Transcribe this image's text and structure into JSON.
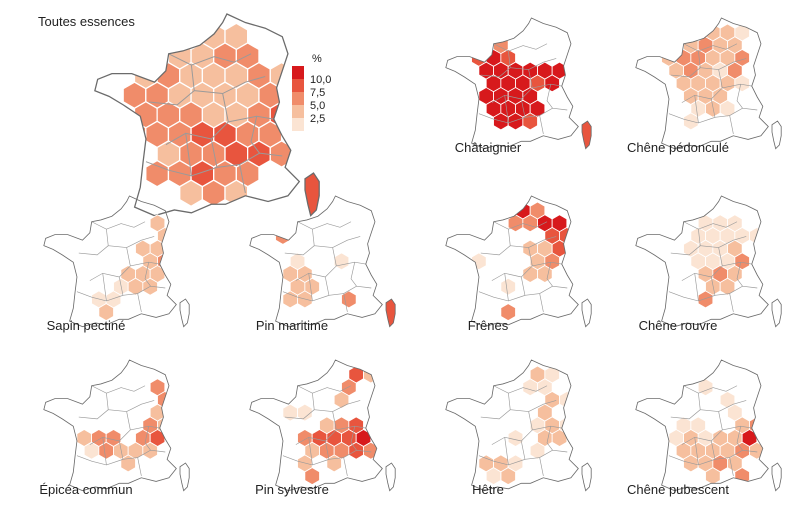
{
  "main_title": "Toutes essences",
  "legend": {
    "unit": "%",
    "ticks": [
      "10,0",
      "7,5",
      "5,0",
      "2,5"
    ],
    "colors": [
      "#d7191c",
      "#e8553e",
      "#f08c6a",
      "#f6bf9e",
      "#fbe4d3"
    ]
  },
  "colors": {
    "outline": "#6b6b6b",
    "regions": "#9a9a9a",
    "hex_border": "#ffffff"
  },
  "maps": [
    {
      "name": "Toutes essences",
      "label": "",
      "cells": [
        [
          3,
          1,
          2
        ],
        [
          4,
          1,
          2
        ],
        [
          5,
          1,
          2
        ],
        [
          2,
          2,
          3
        ],
        [
          3,
          2,
          2
        ],
        [
          4,
          2,
          2
        ],
        [
          5,
          2,
          3
        ],
        [
          6,
          2,
          3
        ],
        [
          1,
          3,
          2
        ],
        [
          2,
          3,
          3
        ],
        [
          3,
          3,
          2
        ],
        [
          4,
          3,
          2
        ],
        [
          5,
          3,
          2
        ],
        [
          6,
          3,
          3
        ],
        [
          7,
          3,
          2
        ],
        [
          1,
          4,
          3
        ],
        [
          2,
          4,
          3
        ],
        [
          3,
          4,
          2
        ],
        [
          4,
          4,
          2
        ],
        [
          5,
          4,
          2
        ],
        [
          6,
          4,
          2
        ],
        [
          7,
          4,
          3
        ],
        [
          1,
          5,
          3
        ],
        [
          2,
          5,
          3
        ],
        [
          3,
          5,
          3
        ],
        [
          4,
          5,
          2
        ],
        [
          5,
          5,
          2
        ],
        [
          6,
          5,
          3
        ],
        [
          7,
          5,
          4
        ],
        [
          1,
          6,
          3
        ],
        [
          2,
          6,
          3
        ],
        [
          3,
          6,
          3
        ],
        [
          4,
          6,
          4
        ],
        [
          5,
          6,
          4
        ],
        [
          6,
          6,
          3
        ],
        [
          7,
          6,
          3
        ],
        [
          2,
          7,
          2
        ],
        [
          3,
          7,
          3
        ],
        [
          4,
          7,
          3
        ],
        [
          5,
          7,
          4
        ],
        [
          6,
          7,
          4
        ],
        [
          7,
          7,
          3
        ],
        [
          2,
          8,
          3
        ],
        [
          3,
          8,
          3
        ],
        [
          4,
          8,
          4
        ],
        [
          5,
          8,
          3
        ],
        [
          6,
          8,
          3
        ],
        [
          3,
          9,
          2
        ],
        [
          4,
          9,
          3
        ],
        [
          5,
          9,
          2
        ]
      ]
    },
    {
      "name": "Châtaignier",
      "label": "Châtaignier",
      "cells": [
        [
          2,
          2,
          4
        ],
        [
          3,
          2,
          3
        ],
        [
          1,
          3,
          4
        ],
        [
          2,
          3,
          5
        ],
        [
          3,
          3,
          4
        ],
        [
          2,
          4,
          5
        ],
        [
          3,
          4,
          5
        ],
        [
          4,
          4,
          5
        ],
        [
          5,
          4,
          5
        ],
        [
          6,
          4,
          5
        ],
        [
          7,
          4,
          5
        ],
        [
          2,
          5,
          5
        ],
        [
          3,
          5,
          5
        ],
        [
          4,
          5,
          5
        ],
        [
          5,
          5,
          4
        ],
        [
          6,
          5,
          5
        ],
        [
          2,
          6,
          5
        ],
        [
          3,
          6,
          5
        ],
        [
          4,
          6,
          5
        ],
        [
          5,
          6,
          5
        ],
        [
          2,
          7,
          5
        ],
        [
          3,
          7,
          5
        ],
        [
          4,
          7,
          5
        ],
        [
          5,
          7,
          5
        ],
        [
          3,
          8,
          5
        ],
        [
          4,
          8,
          5
        ],
        [
          5,
          8,
          4
        ]
      ]
    },
    {
      "name": "Chêne pédonculé",
      "label": "Chêne pédonculé",
      "cells": [
        [
          4,
          1,
          2
        ],
        [
          5,
          1,
          2
        ],
        [
          6,
          1,
          1
        ],
        [
          2,
          2,
          2
        ],
        [
          3,
          2,
          2
        ],
        [
          4,
          2,
          3
        ],
        [
          5,
          2,
          2
        ],
        [
          6,
          2,
          2
        ],
        [
          1,
          3,
          2
        ],
        [
          2,
          3,
          3
        ],
        [
          3,
          3,
          3
        ],
        [
          4,
          3,
          2
        ],
        [
          5,
          3,
          2
        ],
        [
          6,
          3,
          3
        ],
        [
          2,
          4,
          2
        ],
        [
          3,
          4,
          3
        ],
        [
          4,
          4,
          2
        ],
        [
          5,
          4,
          1
        ],
        [
          6,
          4,
          3
        ],
        [
          2,
          5,
          2
        ],
        [
          3,
          5,
          2
        ],
        [
          4,
          5,
          2
        ],
        [
          5,
          5,
          2
        ],
        [
          6,
          5,
          1
        ],
        [
          3,
          6,
          2
        ],
        [
          4,
          6,
          2
        ],
        [
          5,
          6,
          2
        ],
        [
          3,
          7,
          1
        ],
        [
          4,
          7,
          2
        ],
        [
          5,
          7,
          1
        ],
        [
          3,
          8,
          1
        ]
      ]
    },
    {
      "name": "Sapin pectiné",
      "label": "Sapin pectiné",
      "cells": [
        [
          7,
          2,
          2
        ],
        [
          7,
          3,
          2
        ],
        [
          6,
          4,
          2
        ],
        [
          7,
          4,
          2
        ],
        [
          6,
          5,
          2
        ],
        [
          7,
          5,
          3
        ],
        [
          5,
          6,
          2
        ],
        [
          6,
          6,
          2
        ],
        [
          7,
          6,
          2
        ],
        [
          4,
          7,
          1
        ],
        [
          5,
          7,
          2
        ],
        [
          6,
          7,
          2
        ],
        [
          3,
          8,
          1
        ],
        [
          4,
          8,
          1
        ],
        [
          3,
          9,
          2
        ]
      ]
    },
    {
      "name": "Pin maritime",
      "label": "Pin maritime",
      "cells": [
        [
          2,
          2,
          1
        ],
        [
          1,
          3,
          3
        ],
        [
          2,
          5,
          1
        ],
        [
          2,
          6,
          2
        ],
        [
          3,
          6,
          2
        ],
        [
          2,
          7,
          2
        ],
        [
          3,
          7,
          2
        ],
        [
          2,
          8,
          2
        ],
        [
          3,
          8,
          2
        ],
        [
          6,
          8,
          3
        ],
        [
          5,
          5,
          1
        ]
      ]
    },
    {
      "name": "Frênes",
      "label": "Frênes",
      "cells": [
        [
          4,
          1,
          5
        ],
        [
          5,
          1,
          3
        ],
        [
          4,
          2,
          3
        ],
        [
          5,
          2,
          3
        ],
        [
          6,
          2,
          5
        ],
        [
          7,
          2,
          5
        ],
        [
          6,
          3,
          4
        ],
        [
          7,
          3,
          4
        ],
        [
          5,
          4,
          2
        ],
        [
          6,
          4,
          2
        ],
        [
          7,
          4,
          4
        ],
        [
          5,
          5,
          2
        ],
        [
          6,
          5,
          3
        ],
        [
          1,
          5,
          1
        ],
        [
          5,
          6,
          2
        ],
        [
          6,
          6,
          2
        ],
        [
          3,
          7,
          1
        ],
        [
          3,
          9,
          3
        ]
      ]
    },
    {
      "name": "Chêne rouvre",
      "label": "Chêne rouvre",
      "cells": [
        [
          4,
          2,
          1
        ],
        [
          5,
          2,
          1
        ],
        [
          6,
          2,
          1
        ],
        [
          3,
          3,
          1
        ],
        [
          4,
          3,
          1
        ],
        [
          5,
          3,
          1
        ],
        [
          6,
          3,
          1
        ],
        [
          7,
          3,
          1
        ],
        [
          3,
          4,
          1
        ],
        [
          4,
          4,
          1
        ],
        [
          5,
          4,
          1
        ],
        [
          6,
          4,
          2
        ],
        [
          3,
          5,
          1
        ],
        [
          4,
          5,
          1
        ],
        [
          5,
          5,
          1
        ],
        [
          6,
          5,
          3
        ],
        [
          4,
          6,
          2
        ],
        [
          5,
          6,
          3
        ],
        [
          6,
          6,
          2
        ],
        [
          4,
          7,
          2
        ],
        [
          5,
          7,
          2
        ],
        [
          4,
          8,
          3
        ]
      ]
    },
    {
      "name": "Épicéa commun",
      "label": "Épicéa commun",
      "cells": [
        [
          7,
          2,
          3
        ],
        [
          7,
          3,
          3
        ],
        [
          7,
          4,
          2
        ],
        [
          6,
          5,
          3
        ],
        [
          7,
          5,
          2
        ],
        [
          6,
          6,
          3
        ],
        [
          7,
          6,
          4
        ],
        [
          2,
          6,
          2
        ],
        [
          3,
          6,
          3
        ],
        [
          4,
          6,
          3
        ],
        [
          2,
          7,
          1
        ],
        [
          3,
          7,
          3
        ],
        [
          4,
          7,
          2
        ],
        [
          5,
          7,
          2
        ],
        [
          6,
          7,
          2
        ],
        [
          5,
          8,
          2
        ]
      ]
    },
    {
      "name": "Pin sylvestre",
      "label": "Pin sylvestre",
      "cells": [
        [
          6,
          1,
          4
        ],
        [
          7,
          1,
          2
        ],
        [
          6,
          2,
          3
        ],
        [
          5,
          3,
          2
        ],
        [
          2,
          4,
          1
        ],
        [
          3,
          4,
          1
        ],
        [
          4,
          5,
          2
        ],
        [
          5,
          5,
          3
        ],
        [
          6,
          5,
          4
        ],
        [
          3,
          6,
          3
        ],
        [
          4,
          6,
          4
        ],
        [
          5,
          6,
          4
        ],
        [
          6,
          6,
          4
        ],
        [
          7,
          6,
          5
        ],
        [
          3,
          7,
          2
        ],
        [
          4,
          7,
          3
        ],
        [
          5,
          7,
          3
        ],
        [
          6,
          7,
          4
        ],
        [
          7,
          7,
          3
        ],
        [
          3,
          8,
          2
        ],
        [
          5,
          8,
          2
        ],
        [
          3,
          9,
          3
        ]
      ]
    },
    {
      "name": "Hêtre",
      "label": "Hêtre",
      "cells": [
        [
          5,
          1,
          2
        ],
        [
          6,
          1,
          1
        ],
        [
          5,
          2,
          1
        ],
        [
          6,
          2,
          1
        ],
        [
          6,
          3,
          2
        ],
        [
          7,
          3,
          1
        ],
        [
          6,
          4,
          2
        ],
        [
          5,
          5,
          1
        ],
        [
          6,
          5,
          2
        ],
        [
          7,
          5,
          1
        ],
        [
          4,
          6,
          1
        ],
        [
          6,
          6,
          2
        ],
        [
          7,
          6,
          2
        ],
        [
          5,
          7,
          1
        ],
        [
          2,
          8,
          2
        ],
        [
          3,
          8,
          2
        ],
        [
          4,
          8,
          1
        ],
        [
          3,
          9,
          2
        ],
        [
          2,
          9,
          1
        ]
      ]
    },
    {
      "name": "Chêne pubescent",
      "label": "Chêne pubescent",
      "cells": [
        [
          4,
          2,
          1
        ],
        [
          5,
          3,
          1
        ],
        [
          6,
          4,
          1
        ],
        [
          2,
          5,
          1
        ],
        [
          3,
          5,
          1
        ],
        [
          6,
          5,
          2
        ],
        [
          7,
          5,
          3
        ],
        [
          2,
          6,
          1
        ],
        [
          3,
          6,
          2
        ],
        [
          4,
          6,
          1
        ],
        [
          5,
          6,
          2
        ],
        [
          6,
          6,
          2
        ],
        [
          7,
          6,
          5
        ],
        [
          2,
          7,
          2
        ],
        [
          3,
          7,
          2
        ],
        [
          4,
          7,
          2
        ],
        [
          5,
          7,
          2
        ],
        [
          6,
          7,
          3
        ],
        [
          7,
          7,
          2
        ],
        [
          3,
          8,
          2
        ],
        [
          4,
          8,
          2
        ],
        [
          5,
          8,
          3
        ],
        [
          6,
          8,
          2
        ],
        [
          4,
          9,
          2
        ],
        [
          6,
          9,
          3
        ]
      ]
    }
  ]
}
